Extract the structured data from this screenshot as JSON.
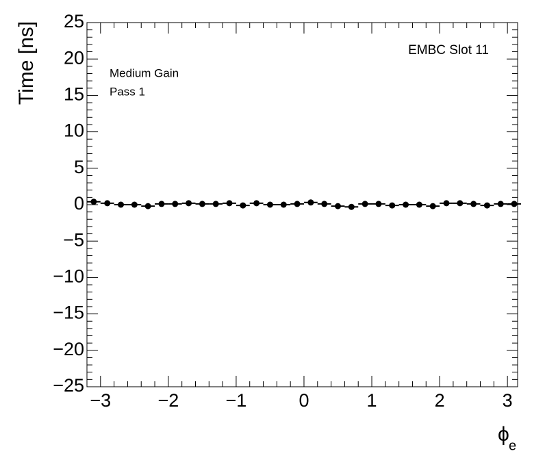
{
  "chart_data": {
    "type": "scatter",
    "y_label": "Time [ns]",
    "x_label": "ϕ",
    "x_label_sub": "e",
    "annotations": [
      "EMBC Slot 11",
      "Medium Gain",
      "Pass 1"
    ],
    "x": [
      -3.1,
      -2.9,
      -2.7,
      -2.5,
      -2.3,
      -2.1,
      -1.9,
      -1.7,
      -1.5,
      -1.3,
      -1.1,
      -0.9,
      -0.7,
      -0.5,
      -0.3,
      -0.1,
      0.1,
      0.3,
      0.5,
      0.7,
      0.9,
      1.1,
      1.3,
      1.5,
      1.7,
      1.9,
      2.1,
      2.3,
      2.5,
      2.7,
      2.9,
      3.1
    ],
    "series": [
      {
        "color": "#000000",
        "values": [
          0.4,
          0.2,
          0.0,
          0.0,
          -0.2,
          0.1,
          0.1,
          0.2,
          0.1,
          0.1,
          0.2,
          -0.1,
          0.2,
          0.0,
          0.0,
          0.1,
          0.3,
          0.1,
          -0.2,
          -0.3,
          0.1,
          0.1,
          -0.1,
          0.0,
          0.0,
          -0.2,
          0.2,
          0.2,
          0.1,
          -0.1,
          0.1,
          0.1
        ]
      }
    ],
    "xlim": [
      -3.2,
      3.15
    ],
    "ylim": [
      -25,
      25
    ],
    "xticks": [
      {
        "value": -3,
        "label": "−3"
      },
      {
        "value": -2,
        "label": "−2"
      },
      {
        "value": -1,
        "label": "−1"
      },
      0,
      1,
      2,
      3
    ],
    "yticks": [
      {
        "value": -25,
        "label": "−25"
      },
      {
        "value": -20,
        "label": "−20"
      },
      {
        "value": -15,
        "label": "−15"
      },
      {
        "value": -10,
        "label": "−10"
      },
      {
        "value": -5,
        "label": "−5"
      },
      0,
      5,
      10,
      15,
      20,
      25
    ],
    "grid": false
  }
}
